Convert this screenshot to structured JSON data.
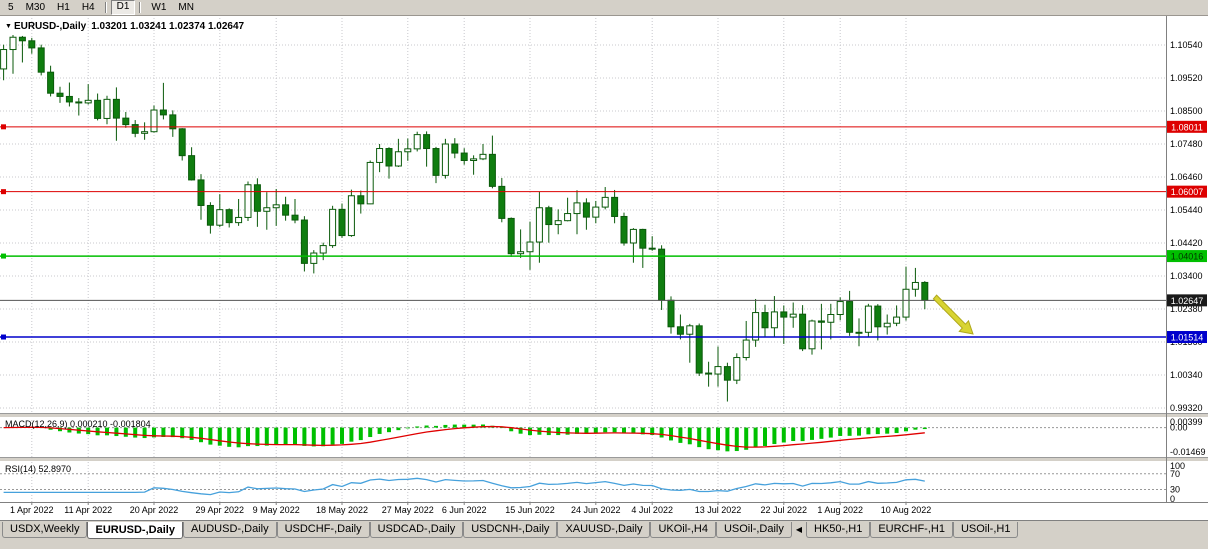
{
  "toolbar": {
    "buttons": [
      "5",
      "M30",
      "H1",
      "H4",
      "D1",
      "W1",
      "MN"
    ],
    "active": "D1"
  },
  "icons": {
    "symbol_marker": "▼",
    "tab_scroll_left": "◀"
  },
  "chart": {
    "ohlc_title": "1.03201 1.03241 1.02374 1.02647"
  },
  "chart_data": {
    "type": "candlestick",
    "symbol": "EURUSD-,Daily",
    "timeframe": "Daily",
    "current_bar": {
      "open": 1.03201,
      "high": 1.03241,
      "low": 1.02374,
      "close": 1.02647
    },
    "colors": {
      "bull_fill": "#ffffff",
      "bear_fill": "#0f7d0f",
      "outline": "#0a5a0a"
    },
    "y_axis": {
      "ticks": [
        "1.10540",
        "1.09520",
        "1.08500",
        "1.07480",
        "1.06460",
        "1.05440",
        "1.04420",
        "1.03400",
        "1.02380",
        "1.01360",
        "1.00340",
        "0.99320"
      ],
      "top_value": 1.1054,
      "step": 0.0102
    },
    "x_axis": {
      "labels": [
        {
          "i": 3,
          "text": "1 Apr 2022"
        },
        {
          "i": 9,
          "text": "11 Apr 2022"
        },
        {
          "i": 16,
          "text": "20 Apr 2022"
        },
        {
          "i": 23,
          "text": "29 Apr 2022"
        },
        {
          "i": 29,
          "text": "9 May 2022"
        },
        {
          "i": 36,
          "text": "18 May 2022"
        },
        {
          "i": 43,
          "text": "27 May 2022"
        },
        {
          "i": 49,
          "text": "6 Jun 2022"
        },
        {
          "i": 56,
          "text": "15 Jun 2022"
        },
        {
          "i": 63,
          "text": "24 Jun 2022"
        },
        {
          "i": 69,
          "text": "4 Jul 2022"
        },
        {
          "i": 76,
          "text": "13 Jul 2022"
        },
        {
          "i": 83,
          "text": "22 Jul 2022"
        },
        {
          "i": 89,
          "text": "1 Aug 2022"
        },
        {
          "i": 96,
          "text": "10 Aug 2022"
        }
      ]
    },
    "candles": [
      [
        1.098,
        1.1055,
        1.0945,
        1.104
      ],
      [
        1.104,
        1.1085,
        1.0965,
        1.1078
      ],
      [
        1.1078,
        1.1082,
        1.1,
        1.1067
      ],
      [
        1.1067,
        1.1076,
        1.1027,
        1.1045
      ],
      [
        1.1045,
        1.1055,
        1.096,
        1.097
      ],
      [
        1.097,
        1.099,
        1.0895,
        1.0905
      ],
      [
        1.0905,
        1.0925,
        1.0875,
        1.0895
      ],
      [
        1.0895,
        1.0938,
        1.0864,
        1.0878
      ],
      [
        1.0878,
        1.089,
        1.0836,
        1.0875
      ],
      [
        1.0875,
        1.0933,
        1.087,
        1.0883
      ],
      [
        1.0883,
        1.0904,
        1.0821,
        1.0827
      ],
      [
        1.0827,
        1.0897,
        1.0809,
        1.0886
      ],
      [
        1.0886,
        1.0923,
        1.0758,
        1.0828
      ],
      [
        1.0828,
        1.0847,
        1.0798,
        1.0808
      ],
      [
        1.0808,
        1.0822,
        1.0769,
        1.0781
      ],
      [
        1.0781,
        1.0815,
        1.0761,
        1.0786
      ],
      [
        1.0786,
        1.0867,
        1.0783,
        1.0853
      ],
      [
        1.0853,
        1.0937,
        1.0824,
        1.0838
      ],
      [
        1.0838,
        1.0852,
        1.077,
        1.0795
      ],
      [
        1.0795,
        1.0797,
        1.0697,
        1.0712
      ],
      [
        1.0712,
        1.0738,
        1.0635,
        1.0637
      ],
      [
        1.0637,
        1.0655,
        1.0514,
        1.0558
      ],
      [
        1.0558,
        1.0568,
        1.0471,
        1.0497
      ],
      [
        1.0497,
        1.0593,
        1.0491,
        1.0545
      ],
      [
        1.0545,
        1.0549,
        1.049,
        1.0505
      ],
      [
        1.0505,
        1.0578,
        1.0495,
        1.0521
      ],
      [
        1.0521,
        1.0632,
        1.051,
        1.0622
      ],
      [
        1.0622,
        1.0642,
        1.0492,
        1.054
      ],
      [
        1.054,
        1.0599,
        1.0483,
        1.0551
      ],
      [
        1.0551,
        1.0609,
        1.0495,
        1.056
      ],
      [
        1.056,
        1.0585,
        1.0511,
        1.0528
      ],
      [
        1.0528,
        1.0578,
        1.0503,
        1.0513
      ],
      [
        1.0513,
        1.0525,
        1.0354,
        1.0379
      ],
      [
        1.0379,
        1.042,
        1.0348,
        1.0411
      ],
      [
        1.0411,
        1.0443,
        1.0389,
        1.0434
      ],
      [
        1.0434,
        1.0557,
        1.0427,
        1.0546
      ],
      [
        1.0546,
        1.0564,
        1.0458,
        1.0465
      ],
      [
        1.0465,
        1.0607,
        1.0461,
        1.0588
      ],
      [
        1.0588,
        1.0604,
        1.0533,
        1.0563
      ],
      [
        1.0563,
        1.0697,
        1.0562,
        1.0691
      ],
      [
        1.0691,
        1.0748,
        1.0661,
        1.0734
      ],
      [
        1.0734,
        1.0738,
        1.0641,
        1.068
      ],
      [
        1.068,
        1.0764,
        1.0677,
        1.0724
      ],
      [
        1.0724,
        1.0765,
        1.0696,
        1.0733
      ],
      [
        1.0733,
        1.0786,
        1.0725,
        1.0777
      ],
      [
        1.0777,
        1.0787,
        1.0678,
        1.0734
      ],
      [
        1.0734,
        1.0739,
        1.0627,
        1.0651
      ],
      [
        1.0651,
        1.0764,
        1.0641,
        1.0748
      ],
      [
        1.0748,
        1.0766,
        1.0704,
        1.072
      ],
      [
        1.072,
        1.0735,
        1.0684,
        1.0697
      ],
      [
        1.0697,
        1.0713,
        1.0653,
        1.0702
      ],
      [
        1.0702,
        1.0748,
        1.0698,
        1.0716
      ],
      [
        1.0716,
        1.0774,
        1.0611,
        1.0617
      ],
      [
        1.0617,
        1.0643,
        1.0506,
        1.0518
      ],
      [
        1.0518,
        1.0521,
        1.0399,
        1.0409
      ],
      [
        1.0409,
        1.0484,
        1.0396,
        1.0415
      ],
      [
        1.0415,
        1.0508,
        1.0359,
        1.0445
      ],
      [
        1.0445,
        1.0601,
        1.0381,
        1.0551
      ],
      [
        1.0551,
        1.0557,
        1.0443,
        1.0499
      ],
      [
        1.0499,
        1.0546,
        1.0469,
        1.0511
      ],
      [
        1.0511,
        1.0582,
        1.0509,
        1.0533
      ],
      [
        1.0533,
        1.0605,
        1.0469,
        1.0566
      ],
      [
        1.0566,
        1.058,
        1.0483,
        1.0522
      ],
      [
        1.0522,
        1.0572,
        1.0503,
        1.0553
      ],
      [
        1.0553,
        1.0615,
        1.0546,
        1.0583
      ],
      [
        1.0583,
        1.0606,
        1.0503,
        1.0524
      ],
      [
        1.0524,
        1.0536,
        1.0434,
        1.0442
      ],
      [
        1.0442,
        1.0488,
        1.0381,
        1.0484
      ],
      [
        1.0484,
        1.0486,
        1.0365,
        1.0426
      ],
      [
        1.0426,
        1.0463,
        1.0418,
        1.0423
      ],
      [
        1.0423,
        1.0435,
        1.0235,
        1.0265
      ],
      [
        1.0265,
        1.0277,
        1.0162,
        1.0183
      ],
      [
        1.0183,
        1.0221,
        1.0144,
        1.016
      ],
      [
        1.016,
        1.0192,
        1.0072,
        1.0186
      ],
      [
        1.0186,
        1.0193,
        1.0031,
        1.004
      ],
      [
        1.004,
        1.0075,
        0.9998,
        1.0037
      ],
      [
        1.0037,
        1.0122,
        0.9998,
        1.006
      ],
      [
        1.006,
        1.0072,
        0.9952,
        1.0018
      ],
      [
        1.0018,
        1.0101,
        1.0006,
        1.0088
      ],
      [
        1.0088,
        1.0201,
        1.0079,
        1.0142
      ],
      [
        1.0142,
        1.0269,
        1.0121,
        1.0227
      ],
      [
        1.0227,
        1.0251,
        1.0153,
        1.018
      ],
      [
        1.018,
        1.0278,
        1.0152,
        1.0229
      ],
      [
        1.0229,
        1.0249,
        1.013,
        1.0213
      ],
      [
        1.0213,
        1.0258,
        1.018,
        1.0222
      ],
      [
        1.0222,
        1.025,
        1.0108,
        1.0115
      ],
      [
        1.0115,
        1.0205,
        1.0097,
        1.0201
      ],
      [
        1.0201,
        1.0254,
        1.0113,
        1.0197
      ],
      [
        1.0197,
        1.0254,
        1.0144,
        1.0221
      ],
      [
        1.0221,
        1.0274,
        1.0203,
        1.0261
      ],
      [
        1.0261,
        1.0294,
        1.0155,
        1.0166
      ],
      [
        1.0166,
        1.0209,
        1.0123,
        1.0166
      ],
      [
        1.0166,
        1.0254,
        1.0151,
        1.0247
      ],
      [
        1.0247,
        1.0253,
        1.0141,
        1.0183
      ],
      [
        1.0183,
        1.0221,
        1.0159,
        1.0194
      ],
      [
        1.0194,
        1.0249,
        1.0185,
        1.0213
      ],
      [
        1.0213,
        1.0369,
        1.0202,
        1.0299
      ],
      [
        1.0299,
        1.0365,
        1.0276,
        1.032
      ],
      [
        1.03201,
        1.03241,
        1.02374,
        1.02647
      ]
    ],
    "hlines": [
      {
        "price": 1.08011,
        "label": "1.08011",
        "color": "#dd0000",
        "text_color": "#ffffff",
        "width": 1
      },
      {
        "price": 1.06007,
        "label": "1.06007",
        "color": "#dd0000",
        "text_color": "#ffffff",
        "width": 1
      },
      {
        "price": 1.04016,
        "label": "1.04016",
        "color": "#00bf00",
        "text_color": "#003300",
        "width": 1.5
      },
      {
        "price": 1.01514,
        "label": "1.01514",
        "color": "#0000cc",
        "text_color": "#ffffff",
        "width": 1.5
      }
    ],
    "current_price": {
      "value": 1.02647,
      "label": "1.02647",
      "color": "#1a1a1a",
      "text_color": "#ffffff"
    },
    "annotations": [
      {
        "type": "arrow",
        "direction": "down-right",
        "color": "#d8d432"
      }
    ],
    "macd": {
      "title": "MACD(12,26,9) 0.000210 -0.001804",
      "params": [
        12,
        26,
        9
      ],
      "macd_value": 0.00021,
      "signal_value": -0.001804,
      "axis_ticks": [
        {
          "v": 0.00399,
          "text": "0.00399"
        },
        {
          "v": 0,
          "text": "0.00"
        },
        {
          "v": -0.01469,
          "text": "-0.01469"
        }
      ],
      "histogram_color": "#00c000",
      "signal_color": "#e00000"
    },
    "rsi": {
      "title": "RSI(14) 52.8970",
      "period": 14,
      "value": 52.897,
      "levels": [
        70,
        30
      ],
      "axis_ticks": [
        {
          "v": 100,
          "text": "100"
        },
        {
          "v": 70,
          "text": "70"
        },
        {
          "v": 30,
          "text": "30"
        },
        {
          "v": 0,
          "text": "0"
        }
      ],
      "line_color": "#46a1dc"
    }
  },
  "tabs": {
    "items": [
      "USDX,Weekly",
      "EURUSD-,Daily",
      "AUDUSD-,Daily",
      "USDCHF-,Daily",
      "USDCAD-,Daily",
      "USDCNH-,Daily",
      "XAUUSD-,Daily",
      "UKOil-,H4",
      "USOil-,Daily",
      "HK50-,H1",
      "EURCHF-,H1",
      "USOil-,H1"
    ],
    "active_index": 1
  }
}
